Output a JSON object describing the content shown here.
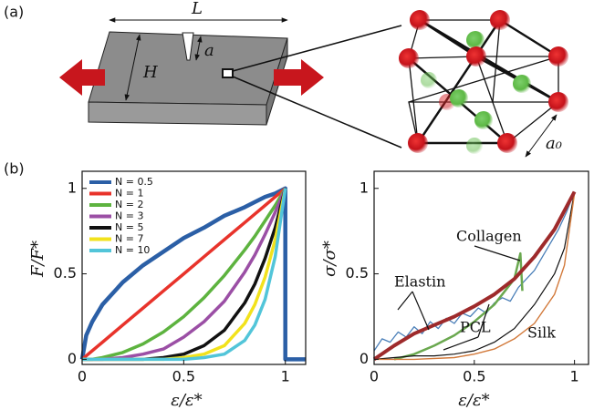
{
  "panel_a": {
    "label": "(a)",
    "length": "L",
    "height": "H",
    "crack": "a",
    "lattice": "a₀"
  },
  "panel_b": {
    "label": "(b)"
  },
  "chart_data": [
    {
      "type": "line",
      "xlabel": "ε/ε*",
      "ylabel": "F/F*",
      "xlim": [
        0,
        1.1
      ],
      "ylim": [
        -0.03,
        1.1
      ],
      "xticks": [
        0,
        0.5,
        1
      ],
      "yticks": [
        0,
        0.5,
        1
      ],
      "legend": "upper left",
      "series": [
        {
          "name": "N = 0.5",
          "color": "#2b5fa6",
          "x": [
            0,
            0.02,
            0.05,
            0.1,
            0.2,
            0.3,
            0.4,
            0.5,
            0.6,
            0.7,
            0.8,
            0.85,
            0.9,
            0.95,
            1,
            1,
            1.1
          ],
          "values": [
            0,
            0.14,
            0.22,
            0.32,
            0.45,
            0.55,
            0.63,
            0.71,
            0.77,
            0.84,
            0.89,
            0.92,
            0.95,
            0.97,
            1,
            0,
            0
          ]
        },
        {
          "name": "N = 1",
          "color": "#e8332b",
          "x": [
            0,
            0.02,
            0.05,
            0.1,
            0.2,
            0.3,
            0.4,
            0.5,
            0.6,
            0.7,
            0.8,
            0.85,
            0.9,
            0.95,
            1
          ],
          "values": [
            0,
            0.02,
            0.05,
            0.1,
            0.2,
            0.3,
            0.4,
            0.5,
            0.6,
            0.7,
            0.8,
            0.85,
            0.9,
            0.95,
            1
          ]
        },
        {
          "name": "N = 2",
          "color": "#5db33f",
          "x": [
            0,
            0.02,
            0.05,
            0.1,
            0.2,
            0.3,
            0.4,
            0.5,
            0.6,
            0.7,
            0.8,
            0.85,
            0.9,
            0.95,
            1
          ],
          "values": [
            0,
            0,
            0,
            0.01,
            0.04,
            0.09,
            0.16,
            0.25,
            0.36,
            0.49,
            0.64,
            0.72,
            0.81,
            0.9,
            1
          ]
        },
        {
          "name": "N = 3",
          "color": "#9b4fa5",
          "x": [
            0,
            0.02,
            0.05,
            0.1,
            0.2,
            0.3,
            0.4,
            0.5,
            0.6,
            0.7,
            0.8,
            0.85,
            0.9,
            0.95,
            1
          ],
          "values": [
            0,
            0,
            0,
            0,
            0.01,
            0.03,
            0.06,
            0.13,
            0.22,
            0.34,
            0.51,
            0.61,
            0.73,
            0.86,
            1
          ]
        },
        {
          "name": "N = 5",
          "color": "#111111",
          "x": [
            0,
            0.02,
            0.05,
            0.1,
            0.2,
            0.3,
            0.4,
            0.5,
            0.6,
            0.7,
            0.8,
            0.85,
            0.9,
            0.95,
            1
          ],
          "values": [
            0,
            0,
            0,
            0,
            0,
            0,
            0.01,
            0.03,
            0.08,
            0.17,
            0.33,
            0.44,
            0.59,
            0.77,
            1
          ]
        },
        {
          "name": "N = 7",
          "color": "#f2e21c",
          "x": [
            0,
            0.02,
            0.05,
            0.1,
            0.2,
            0.3,
            0.4,
            0.5,
            0.6,
            0.7,
            0.8,
            0.85,
            0.9,
            0.95,
            1
          ],
          "values": [
            0,
            0,
            0,
            0,
            0,
            0,
            0,
            0.01,
            0.03,
            0.08,
            0.21,
            0.32,
            0.48,
            0.7,
            1
          ]
        },
        {
          "name": "N = 10",
          "color": "#52c5d9",
          "x": [
            0,
            0.02,
            0.05,
            0.1,
            0.2,
            0.3,
            0.4,
            0.5,
            0.6,
            0.7,
            0.8,
            0.85,
            0.9,
            0.95,
            1
          ],
          "values": [
            0,
            0,
            0,
            0,
            0,
            0,
            0,
            0,
            0.01,
            0.03,
            0.11,
            0.2,
            0.35,
            0.6,
            1
          ]
        }
      ]
    },
    {
      "type": "line",
      "xlabel": "ε/ε*",
      "ylabel": "σ/σ*",
      "xlim": [
        0,
        1.07
      ],
      "ylim": [
        -0.03,
        1.1
      ],
      "xticks": [
        0,
        0.5,
        1
      ],
      "yticks": [
        0,
        0.5,
        1
      ],
      "series": [
        {
          "name": "Elastin",
          "color": "#4a7fb8",
          "x": [
            0,
            0.04,
            0.08,
            0.12,
            0.16,
            0.2,
            0.24,
            0.28,
            0.32,
            0.36,
            0.4,
            0.44,
            0.48,
            0.52,
            0.56,
            0.6,
            0.64,
            0.68,
            0.72,
            0.76,
            0.8,
            0.84,
            0.88,
            0.92,
            0.96,
            1
          ],
          "values": [
            0.05,
            0.12,
            0.1,
            0.16,
            0.13,
            0.19,
            0.15,
            0.22,
            0.18,
            0.24,
            0.21,
            0.27,
            0.25,
            0.3,
            0.27,
            0.33,
            0.36,
            0.34,
            0.42,
            0.47,
            0.52,
            0.6,
            0.68,
            0.76,
            0.86,
            0.98
          ]
        },
        {
          "name": "Collagen",
          "color": "#6aa84f",
          "x": [
            0.1,
            0.2,
            0.3,
            0.4,
            0.5,
            0.6,
            0.7,
            0.73,
            0.74
          ],
          "values": [
            0,
            0.03,
            0.08,
            0.14,
            0.22,
            0.32,
            0.47,
            0.62,
            0.4
          ]
        },
        {
          "name": "PCL",
          "color": "#111111",
          "x": [
            0,
            0.1,
            0.2,
            0.3,
            0.4,
            0.5,
            0.6,
            0.7,
            0.8,
            0.9,
            0.95,
            1
          ],
          "values": [
            0,
            0.01,
            0.02,
            0.02,
            0.03,
            0.05,
            0.1,
            0.18,
            0.32,
            0.5,
            0.65,
            0.98
          ]
        },
        {
          "name": "Silk",
          "color": "#d2793a",
          "x": [
            0,
            0.2,
            0.4,
            0.5,
            0.6,
            0.7,
            0.8,
            0.9,
            0.95,
            1
          ],
          "values": [
            0,
            0,
            0.01,
            0.03,
            0.06,
            0.12,
            0.21,
            0.38,
            0.55,
            0.97
          ]
        },
        {
          "color": "#9e2a2b",
          "x": [
            0,
            0.1,
            0.2,
            0.3,
            0.4,
            0.5,
            0.6,
            0.7,
            0.8,
            0.9,
            1
          ],
          "values": [
            0,
            0.08,
            0.15,
            0.2,
            0.25,
            0.31,
            0.38,
            0.47,
            0.6,
            0.76,
            0.98
          ]
        }
      ]
    }
  ]
}
